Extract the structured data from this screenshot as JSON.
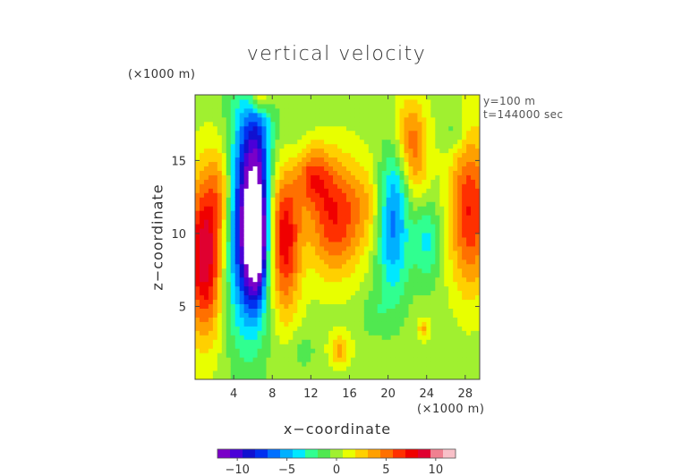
{
  "chart_data": {
    "type": "heatmap",
    "title": "vertical velocity",
    "xlabel": "x−coordinate",
    "ylabel": "z−coordinate",
    "x_unit_label": "(×1000 m)",
    "y_unit_label": "(×1000 m)",
    "annotations": [
      "y=100 m",
      "t=144000 sec"
    ],
    "xlim": [
      0,
      29.5
    ],
    "ylim": [
      0,
      19.5
    ],
    "x_ticks": [
      4,
      8,
      12,
      16,
      20,
      24,
      28
    ],
    "x_tick_labels": [
      "4",
      "8",
      "12",
      "16",
      "20",
      "24",
      "28"
    ],
    "y_ticks": [
      5,
      10,
      15
    ],
    "y_tick_labels": [
      "5",
      "10",
      "15"
    ],
    "colorbar": {
      "range": [
        -12,
        12
      ],
      "ticks": [
        -10,
        -5,
        0,
        5,
        10
      ],
      "tick_labels": [
        "−10",
        "−5",
        "0",
        "5",
        "10"
      ],
      "colors": [
        "#7a00c8",
        "#4a00d8",
        "#1010d0",
        "#0030f0",
        "#0070ff",
        "#00b0ff",
        "#00e8ff",
        "#30ff90",
        "#50e850",
        "#a0f030",
        "#e8ff00",
        "#ffd000",
        "#ffa000",
        "#ff7000",
        "#ff3000",
        "#f00000",
        "#e00030",
        "#f08090",
        "#f8c0c8"
      ]
    },
    "background_value": 0,
    "features": [
      {
        "x": 1.0,
        "z": 8.5,
        "sx": 1.3,
        "sz": 3.8,
        "value": 9.5
      },
      {
        "x": 2.8,
        "z": 13.0,
        "sx": 1.0,
        "sz": 2.5,
        "value": 4.0
      },
      {
        "x": 5.5,
        "z": 11.0,
        "sx": 1.6,
        "sz": 5.2,
        "value": -11.0
      },
      {
        "x": 6.3,
        "z": 10.0,
        "sx": 0.7,
        "sz": 2.6,
        "value": -14.0
      },
      {
        "x": 6.5,
        "z": 16.5,
        "sx": 1.0,
        "sz": 2.2,
        "value": -3.5
      },
      {
        "x": 6.7,
        "z": 19.2,
        "sx": 0.7,
        "sz": 0.6,
        "value": 5.0
      },
      {
        "x": 9.2,
        "z": 10.0,
        "sx": 1.2,
        "sz": 3.8,
        "value": 8.5
      },
      {
        "x": 10.0,
        "z": 15.0,
        "sx": 1.3,
        "sz": 2.5,
        "value": -2.0
      },
      {
        "x": 12.0,
        "z": 14.0,
        "sx": 1.3,
        "sz": 1.5,
        "value": 5.0
      },
      {
        "x": 14.5,
        "z": 11.2,
        "sx": 2.0,
        "sz": 2.8,
        "value": 7.0
      },
      {
        "x": 18.0,
        "z": 12.0,
        "sx": 1.2,
        "sz": 2.2,
        "value": 2.0
      },
      {
        "x": 20.5,
        "z": 10.5,
        "sx": 1.2,
        "sz": 3.5,
        "value": -6.0
      },
      {
        "x": 21.5,
        "z": 14.0,
        "sx": 1.0,
        "sz": 2.0,
        "value": -3.0
      },
      {
        "x": 22.3,
        "z": 15.5,
        "sx": 1.2,
        "sz": 2.5,
        "value": 6.5
      },
      {
        "x": 24.0,
        "z": 9.5,
        "sx": 1.0,
        "sz": 2.0,
        "value": -3.5
      },
      {
        "x": 28.5,
        "z": 11.5,
        "sx": 1.5,
        "sz": 3.8,
        "value": 7.0
      },
      {
        "x": 27.0,
        "z": 17.0,
        "sx": 0.8,
        "sz": 1.0,
        "value": -2.0
      },
      {
        "x": 15.0,
        "z": 2.0,
        "sx": 0.8,
        "sz": 0.8,
        "value": 3.5
      },
      {
        "x": 23.7,
        "z": 3.5,
        "sx": 0.4,
        "sz": 0.5,
        "value": 3.5
      },
      {
        "x": 18.5,
        "z": 4.5,
        "sx": 1.0,
        "sz": 1.0,
        "value": -1.5
      },
      {
        "x": 11.0,
        "z": 2.0,
        "sx": 1.2,
        "sz": 1.0,
        "value": -1.2
      }
    ]
  }
}
